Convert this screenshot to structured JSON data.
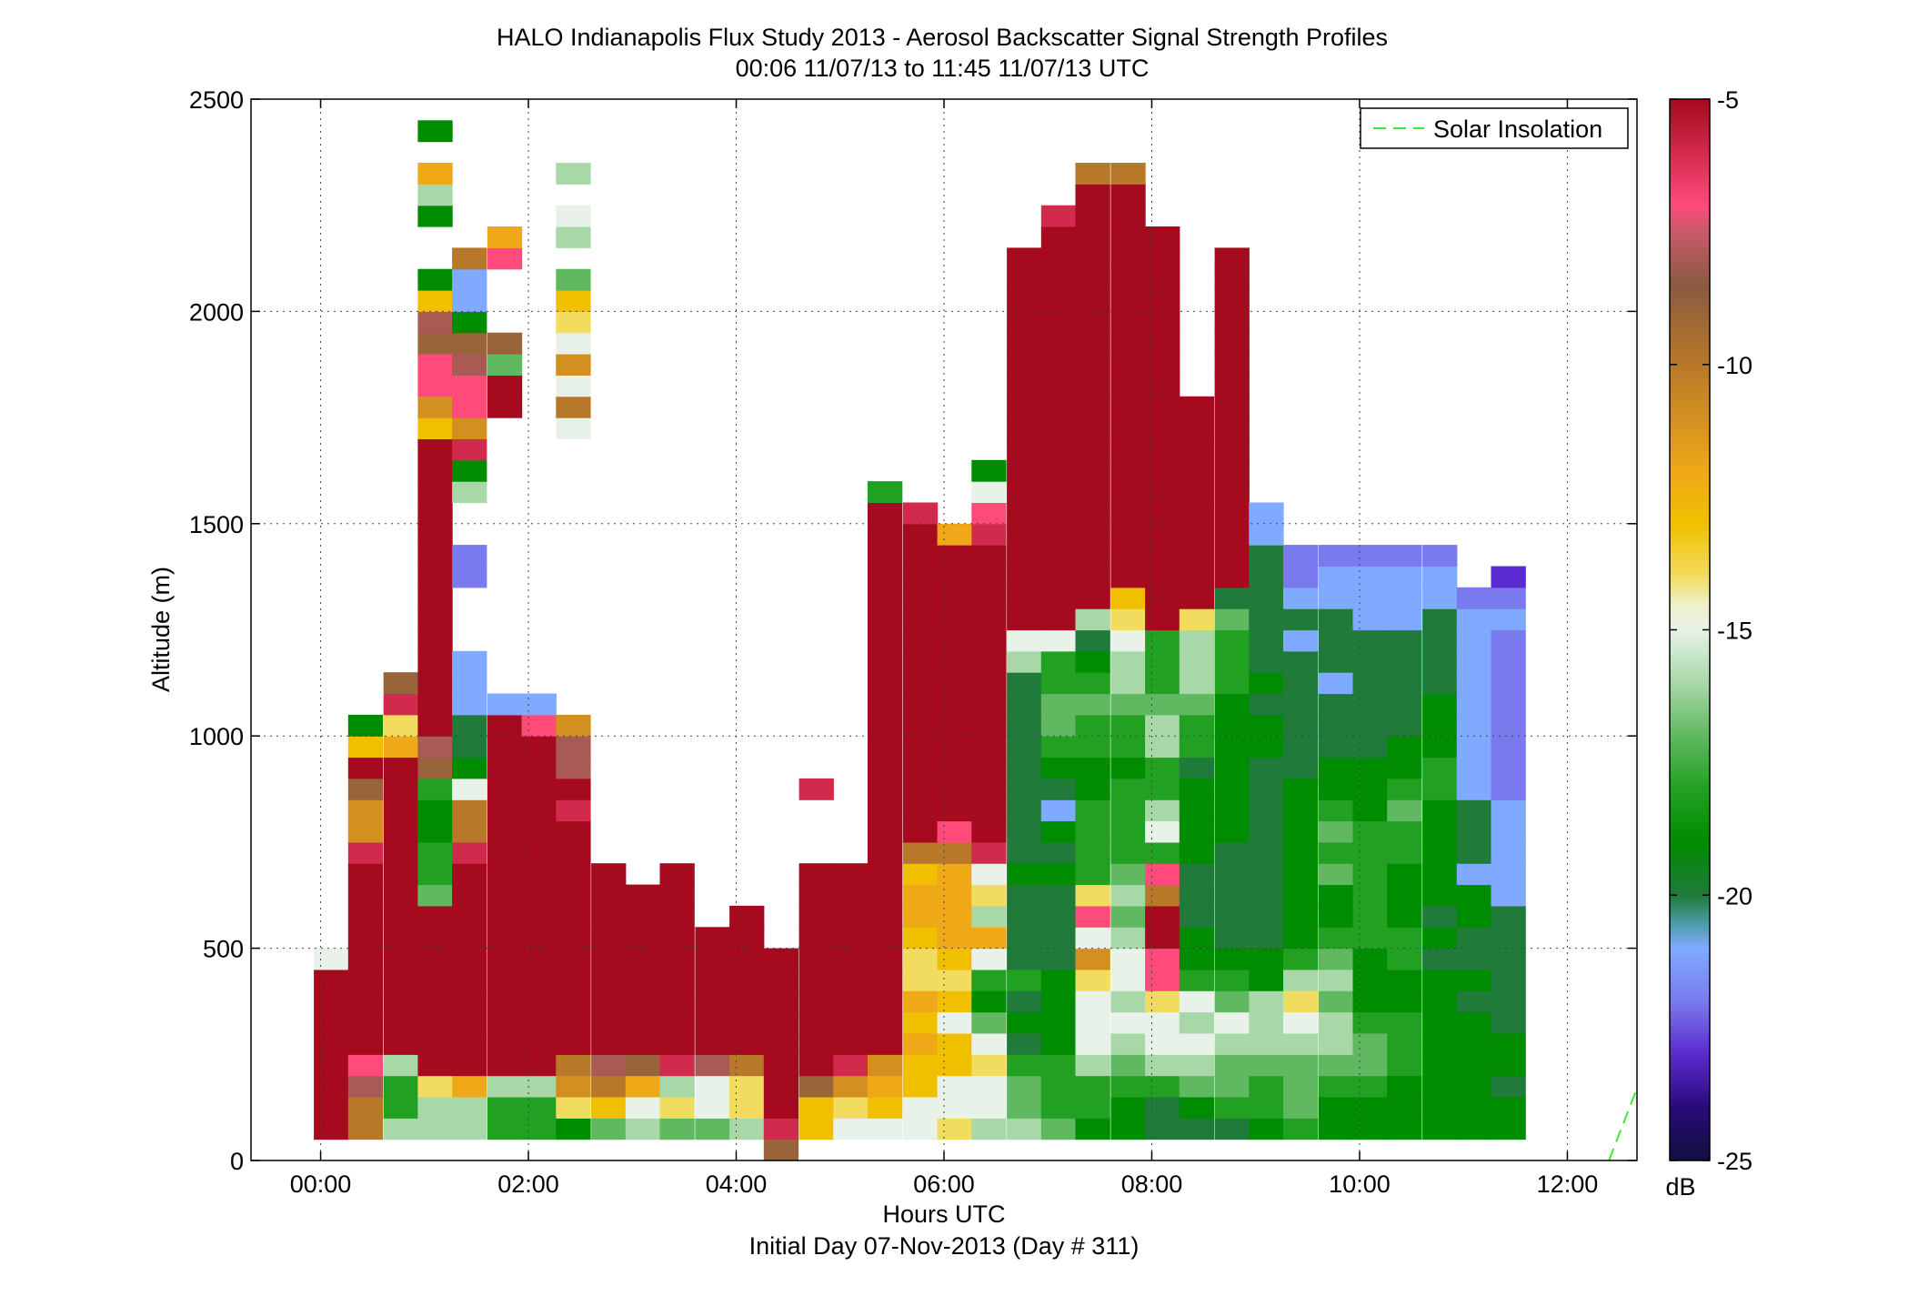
{
  "chart_data": {
    "type": "heatmap",
    "title": "HALO Indianapolis Flux Study 2013 - Aerosol Backscatter Signal Strength Profiles",
    "subtitle": "00:06 11/07/13 to 11:45 11/07/13  UTC",
    "xlabel": "Hours UTC",
    "xlabel2": "Initial Day 07-Nov-2013 (Day # 311)",
    "ylabel": "Altitude (m)",
    "xlim": [
      -0.67,
      12.67
    ],
    "ylim": [
      0,
      2500
    ],
    "xticks": [
      0,
      2,
      4,
      6,
      8,
      10,
      12
    ],
    "xtick_labels": [
      "00:00",
      "02:00",
      "04:00",
      "06:00",
      "08:00",
      "10:00",
      "12:00"
    ],
    "yticks": [
      0,
      500,
      1000,
      1500,
      2000,
      2500
    ],
    "ytick_labels": [
      "0",
      "500",
      "1000",
      "1500",
      "2000",
      "2500"
    ],
    "grid": true,
    "legend": {
      "position": "top-right",
      "entries": [
        "Solar Insolation"
      ]
    },
    "colorbar": {
      "label": "dB",
      "min": -25,
      "max": -5,
      "ticks": [
        -25,
        -20,
        -15,
        -10,
        -5
      ],
      "tick_labels": [
        "-25",
        "-20",
        "-15",
        "-10",
        "-5"
      ]
    },
    "cell_width_hours": 0.33,
    "cell_height_m": 50,
    "columns": [
      {
        "t": 0.1,
        "bottom": 50,
        "values": [
          -5,
          -5,
          -5,
          -5,
          -5,
          -5,
          -5,
          -5,
          -15
        ]
      },
      {
        "t": 0.43,
        "bottom": 50,
        "values": [
          -10,
          -10,
          -8,
          -7,
          -5,
          -5,
          -5,
          -5,
          -5,
          -5,
          -5,
          -5,
          -5,
          -6,
          -11,
          -11,
          -9,
          -5,
          -13,
          -19
        ]
      },
      {
        "t": 0.77,
        "bottom": 50,
        "values": [
          -16,
          -18,
          -18,
          -16,
          -5,
          -5,
          -5,
          -5,
          -5,
          -5,
          -5,
          -5,
          -5,
          -5,
          -5,
          -5,
          -5,
          -5,
          -12,
          -14,
          -6,
          -9
        ]
      },
      {
        "t": 1.1,
        "bottom": 50,
        "values": [
          -16,
          -16,
          -14,
          -5,
          -5,
          -5,
          -5,
          -5,
          -5,
          -5,
          -5,
          -17,
          -18,
          -18,
          -19,
          -19,
          -18,
          -9,
          -8,
          -5,
          -5,
          -5,
          -5,
          -5,
          -5,
          -5,
          -5,
          -5,
          -5,
          -5,
          -5,
          -5,
          -5,
          -13,
          -11,
          -7,
          -7,
          -9,
          -8,
          -13,
          -19,
          null,
          null,
          -19,
          -16,
          -12,
          null,
          -19
        ]
      },
      {
        "t": 1.43,
        "bottom": 50,
        "values": [
          -16,
          -16,
          -12,
          -5,
          -5,
          -5,
          -5,
          -5,
          -5,
          -5,
          -5,
          -5,
          -5,
          -6,
          -10,
          -10,
          -15,
          -19,
          -20,
          -20,
          -21,
          -21,
          -21,
          null,
          null,
          null,
          -22,
          -22,
          null,
          null,
          -16,
          -19,
          -6,
          -11,
          -7,
          -7,
          -8,
          -9,
          -19,
          -21,
          -21,
          -10
        ]
      },
      {
        "t": 1.77,
        "bottom": 50,
        "values": [
          -18,
          -18,
          -16,
          -5,
          -5,
          -5,
          -5,
          -5,
          -5,
          -5,
          -5,
          -5,
          -5,
          -5,
          -5,
          -5,
          -5,
          -5,
          -5,
          -5,
          -21,
          null,
          null,
          null,
          null,
          null,
          null,
          null,
          null,
          null,
          null,
          null,
          null,
          null,
          -5,
          -5,
          -17,
          -9,
          null,
          null,
          null,
          -7,
          -12
        ]
      },
      {
        "t": 2.1,
        "bottom": 50,
        "values": [
          -18,
          -18,
          -16,
          -5,
          -5,
          -5,
          -5,
          -5,
          -5,
          -5,
          -5,
          -5,
          -5,
          -5,
          -5,
          -5,
          -5,
          -5,
          -5,
          -7,
          -21
        ]
      },
      {
        "t": 2.43,
        "bottom": 50,
        "values": [
          -19,
          -14,
          -11,
          -10,
          -5,
          -5,
          -5,
          -5,
          -5,
          -5,
          -5,
          -5,
          -5,
          -5,
          -5,
          -6,
          -5,
          -8,
          -8,
          -11,
          null,
          null,
          null,
          null,
          null,
          null,
          null,
          null,
          null,
          null,
          null,
          null,
          null,
          -15,
          -10,
          -15,
          -11,
          -15,
          -14,
          -13,
          -17,
          null,
          -16,
          -15,
          null,
          -16
        ]
      },
      {
        "t": 2.77,
        "bottom": 50,
        "values": [
          -17,
          -13,
          -10,
          -8,
          -5,
          -5,
          -5,
          -5,
          -5,
          -5,
          -5,
          -5,
          -5
        ]
      },
      {
        "t": 3.1,
        "bottom": 50,
        "values": [
          -16,
          -15,
          -12,
          -9,
          -5,
          -5,
          -5,
          -5,
          -5,
          -5,
          -5,
          -5
        ]
      },
      {
        "t": 3.43,
        "bottom": 50,
        "values": [
          -17,
          -14,
          -16,
          -6,
          -5,
          -5,
          -5,
          -5,
          -5,
          -5,
          -5,
          -5,
          -5
        ]
      },
      {
        "t": 3.77,
        "bottom": 50,
        "values": [
          -17,
          -15,
          -15,
          -8,
          -5,
          -5,
          -5,
          -5,
          -5,
          -5
        ]
      },
      {
        "t": 4.1,
        "bottom": 50,
        "values": [
          -16,
          -14,
          -14,
          -10,
          -5,
          -5,
          -5,
          -5,
          -5,
          -5,
          -5
        ]
      },
      {
        "t": 4.43,
        "bottom": 0,
        "values": [
          -9,
          -6,
          -5,
          -5,
          -5,
          -5,
          -5,
          -5,
          -5,
          -5
        ]
      },
      {
        "t": 4.77,
        "bottom": 50,
        "values": [
          -13,
          -13,
          -9,
          -5,
          -5,
          -5,
          -5,
          -5,
          -5,
          -5,
          -5,
          -5,
          -5,
          null,
          null,
          null,
          -6
        ]
      },
      {
        "t": 5.1,
        "bottom": 50,
        "values": [
          -15,
          -14,
          -11,
          -6,
          -5,
          -5,
          -5,
          -5,
          -5,
          -5,
          -5,
          -5,
          -5
        ]
      },
      {
        "t": 5.43,
        "bottom": 50,
        "values": [
          -15,
          -13,
          -12,
          -11,
          -5,
          -5,
          -5,
          -5,
          -5,
          -5,
          -5,
          -5,
          -5,
          -5,
          -5,
          -5,
          -5,
          -5,
          -5,
          -5,
          -5,
          -5,
          -5,
          -5,
          -5,
          -5,
          -5,
          -5,
          -5,
          -5,
          -18
        ]
      },
      {
        "t": 5.77,
        "bottom": 50,
        "values": [
          -15,
          -15,
          -13,
          -13,
          -12,
          -13,
          -12,
          -14,
          -14,
          -13,
          -12,
          -12,
          -13,
          -10,
          -5,
          -5,
          -5,
          -5,
          -5,
          -5,
          -5,
          -5,
          -5,
          -5,
          -5,
          -5,
          -5,
          -5,
          -5,
          -6
        ]
      },
      {
        "t": 6.1,
        "bottom": 50,
        "values": [
          -14,
          -15,
          -15,
          -13,
          -13,
          -15,
          -13,
          -14,
          -13,
          -12,
          -12,
          -12,
          -12,
          -10,
          -7,
          -5,
          -5,
          -5,
          -5,
          -5,
          -5,
          -5,
          -5,
          -5,
          -5,
          -5,
          -5,
          -5,
          -12
        ]
      },
      {
        "t": 6.43,
        "bottom": 50,
        "values": [
          -16,
          -15,
          -15,
          -14,
          -15,
          -17,
          -19,
          -18,
          -15,
          -12,
          -16,
          -14,
          -15,
          -6,
          -5,
          -5,
          -5,
          -5,
          -5,
          -5,
          -5,
          -5,
          -5,
          -5,
          -5,
          -5,
          -5,
          -5,
          -6,
          -7,
          -15,
          -19
        ]
      },
      {
        "t": 6.77,
        "bottom": 50,
        "values": [
          -16,
          -17,
          -17,
          -18,
          -20,
          -19,
          -20,
          -18,
          -20,
          -20,
          -20,
          -20,
          -19,
          -20,
          -20,
          -20,
          -20,
          -20,
          -20,
          -20,
          -20,
          -20,
          -16,
          -15,
          -5,
          -5,
          -5,
          -5,
          -5,
          -5,
          -5,
          -5,
          -5,
          -5,
          -5,
          -5,
          -5,
          -5,
          -5,
          -5,
          -5,
          -5
        ]
      },
      {
        "t": 7.1,
        "bottom": 50,
        "values": [
          -17,
          -18,
          -18,
          -18,
          -19,
          -19,
          -19,
          -19,
          -20,
          -20,
          -20,
          -20,
          -19,
          -20,
          -19,
          -21,
          -20,
          -19,
          -18,
          -17,
          -17,
          -18,
          -18,
          -15,
          -5,
          -5,
          -5,
          -5,
          -5,
          -5,
          -5,
          -5,
          -5,
          -5,
          -5,
          -5,
          -5,
          -5,
          -5,
          -5,
          -5,
          -5,
          -5,
          -6
        ]
      },
      {
        "t": 7.43,
        "bottom": 50,
        "values": [
          -19,
          -18,
          -18,
          -16,
          -15,
          -15,
          -15,
          -14,
          -11,
          -15,
          -7,
          -14,
          -18,
          -18,
          -18,
          -18,
          -19,
          -19,
          -18,
          -18,
          -17,
          -18,
          -19,
          -20,
          -16,
          -5,
          -5,
          -5,
          -5,
          -5,
          -5,
          -5,
          -5,
          -5,
          -5,
          -5,
          -5,
          -5,
          -5,
          -5,
          -5,
          -5,
          -5,
          -5,
          -5,
          -10
        ]
      },
      {
        "t": 7.77,
        "bottom": 50,
        "values": [
          -19,
          -19,
          -18,
          -17,
          -16,
          -15,
          -16,
          -15,
          -15,
          -16,
          -17,
          -16,
          -17,
          -18,
          -18,
          -18,
          -18,
          -19,
          -18,
          -18,
          -17,
          -16,
          -16,
          -15,
          -14,
          -13,
          -5,
          -5,
          -5,
          -5,
          -5,
          -5,
          -5,
          -5,
          -5,
          -5,
          -5,
          -5,
          -5,
          -5,
          -5,
          -5,
          -5,
          -5,
          -5,
          -10
        ]
      },
      {
        "t": 8.1,
        "bottom": 50,
        "values": [
          -20,
          -20,
          -18,
          -16,
          -15,
          -15,
          -14,
          -7,
          -7,
          -5,
          -5,
          -10,
          -7,
          -18,
          -15,
          -16,
          -18,
          -18,
          -16,
          -16,
          -17,
          -18,
          -18,
          -18,
          -5,
          -5,
          -5,
          -5,
          -5,
          -5,
          -5,
          -5,
          -5,
          -5,
          -5,
          -5,
          -5,
          -5,
          -5,
          -5,
          -5,
          -5,
          -5
        ]
      },
      {
        "t": 8.43,
        "bottom": 50,
        "values": [
          -20,
          -19,
          -17,
          -16,
          -15,
          -16,
          -15,
          -18,
          -19,
          -19,
          -20,
          -20,
          -20,
          -19,
          -19,
          -19,
          -19,
          -20,
          -18,
          -18,
          -17,
          -16,
          -16,
          -16,
          -14,
          -5,
          -5,
          -5,
          -5,
          -5,
          -5,
          -5,
          -5,
          -5,
          -5
        ]
      },
      {
        "t": 8.77,
        "bottom": 50,
        "values": [
          -20,
          -18,
          -17,
          -17,
          -16,
          -15,
          -17,
          -18,
          -19,
          -20,
          -20,
          -20,
          -20,
          -20,
          -19,
          -19,
          -19,
          -19,
          -19,
          -19,
          -19,
          -18,
          -18,
          -18,
          -17,
          -20,
          -5,
          -5,
          -5,
          -5,
          -5,
          -5,
          -5,
          -5,
          -5,
          -5,
          -5,
          -5,
          -5,
          -5,
          -5,
          -5
        ]
      },
      {
        "t": 9.1,
        "bottom": 50,
        "values": [
          -19,
          -18,
          -18,
          -17,
          -16,
          -16,
          -16,
          -19,
          -19,
          -20,
          -20,
          -20,
          -20,
          -20,
          -20,
          -20,
          -20,
          -20,
          -19,
          -19,
          -20,
          -19,
          -20,
          -20,
          -20,
          -20,
          -20,
          -20,
          -21,
          -21
        ]
      },
      {
        "t": 9.43,
        "bottom": 50,
        "values": [
          -18,
          -17,
          -17,
          -17,
          -16,
          -15,
          -14,
          -16,
          -18,
          -19,
          -19,
          -19,
          -19,
          -19,
          -19,
          -19,
          -19,
          -20,
          -20,
          -20,
          -20,
          -20,
          -20,
          -21,
          -20,
          -21,
          -22,
          -22
        ]
      },
      {
        "t": 9.77,
        "bottom": 50,
        "values": [
          -19,
          -19,
          -18,
          -17,
          -16,
          -16,
          -17,
          -16,
          -17,
          -18,
          -19,
          -19,
          -17,
          -18,
          -17,
          -18,
          -19,
          -19,
          -20,
          -20,
          -20,
          -21,
          -20,
          -20,
          -20,
          -21,
          -21,
          -22
        ]
      },
      {
        "t": 10.1,
        "bottom": 50,
        "values": [
          -19,
          -19,
          -18,
          -17,
          -17,
          -18,
          -19,
          -19,
          -19,
          -18,
          -18,
          -18,
          -18,
          -18,
          -18,
          -19,
          -19,
          -19,
          -20,
          -20,
          -20,
          -20,
          -20,
          -20,
          -21,
          -21,
          -21,
          -22
        ]
      },
      {
        "t": 10.43,
        "bottom": 50,
        "values": [
          -19,
          -19,
          -19,
          -18,
          -18,
          -18,
          -19,
          -19,
          -18,
          -18,
          -19,
          -19,
          -19,
          -18,
          -18,
          -17,
          -18,
          -19,
          -19,
          -20,
          -20,
          -20,
          -20,
          -20,
          -21,
          -21,
          -21,
          -22
        ]
      },
      {
        "t": 10.77,
        "bottom": 50,
        "values": [
          -19,
          -19,
          -19,
          -19,
          -19,
          -19,
          -19,
          -19,
          -20,
          -19,
          -20,
          -19,
          -19,
          -19,
          -19,
          -19,
          -18,
          -18,
          -19,
          -19,
          -19,
          -20,
          -20,
          -20,
          -20,
          -21,
          -21,
          -22
        ]
      },
      {
        "t": 11.1,
        "bottom": 50,
        "values": [
          -19,
          -19,
          -19,
          -19,
          -19,
          -19,
          -20,
          -19,
          -20,
          -20,
          -19,
          -19,
          -21,
          -20,
          -20,
          -20,
          -21,
          -21,
          -21,
          -21,
          -21,
          -21,
          -21,
          -21,
          -21,
          -22
        ]
      },
      {
        "t": 11.43,
        "bottom": 50,
        "values": [
          -19,
          -19,
          -20,
          -19,
          -19,
          -20,
          -20,
          -20,
          -20,
          -20,
          -20,
          -21,
          -21,
          -21,
          -21,
          -21,
          -22,
          -22,
          -22,
          -22,
          -22,
          -22,
          -22,
          -22,
          -21,
          -22,
          -23
        ]
      }
    ],
    "series": [
      {
        "name": "Solar Insolation",
        "type": "line",
        "x": [
          12.4,
          12.67
        ],
        "y": [
          0,
          170
        ]
      }
    ]
  }
}
